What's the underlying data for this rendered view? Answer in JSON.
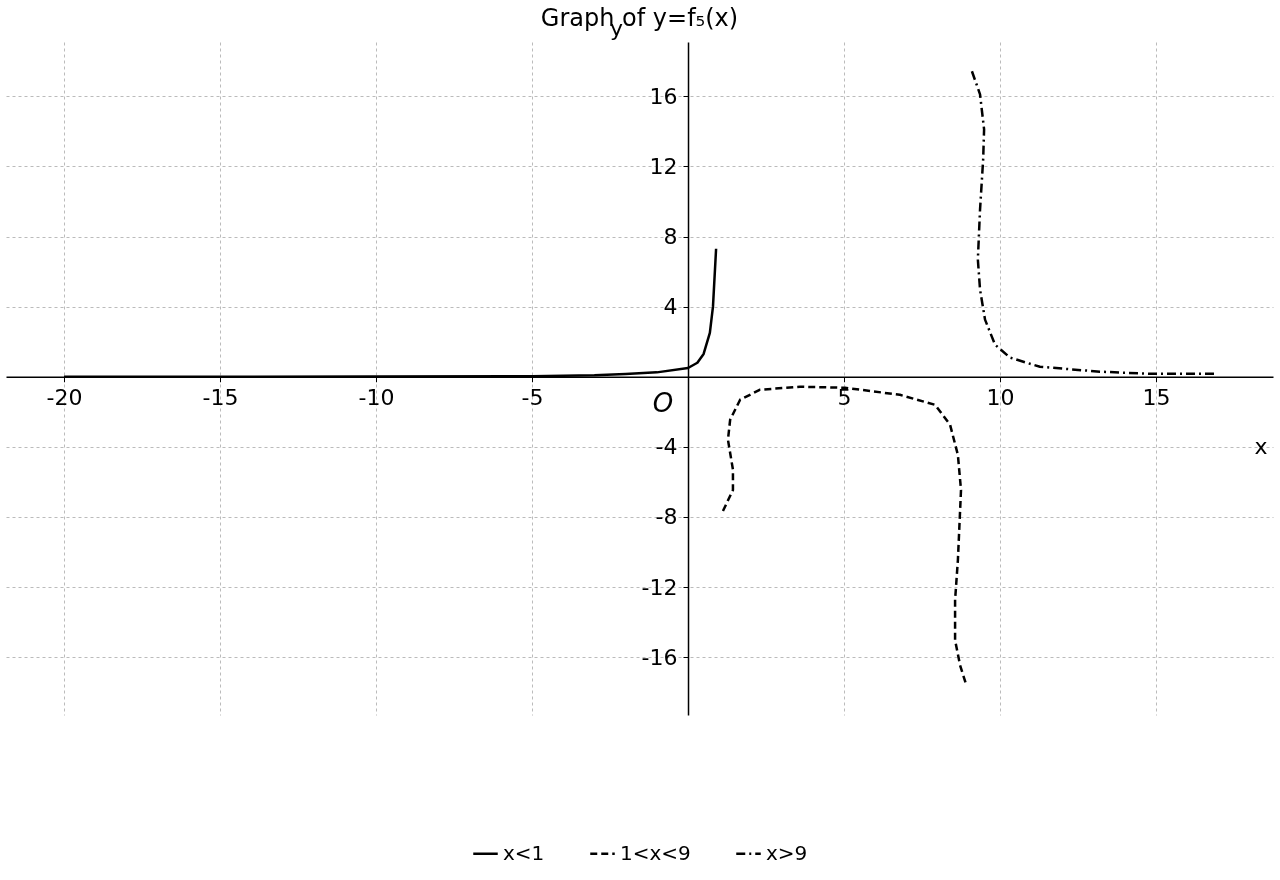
{
  "chart_data": {
    "type": "line",
    "title": "Graph of y=f₅(x)",
    "xlabel": "x",
    "ylabel": "y",
    "annotations": [
      "O"
    ],
    "xlim": [
      -21.86,
      18.75
    ],
    "ylim": [
      -19.3,
      19.1
    ],
    "xticks": [
      -20,
      -15,
      -10,
      -5,
      5,
      10,
      15
    ],
    "yticks": [
      -16,
      -12,
      -8,
      -4,
      4,
      8,
      12,
      16
    ],
    "grid": true,
    "legend": "bottom",
    "series": [
      {
        "name": "x<1",
        "color": "#000000",
        "line_style": "solid",
        "x": [
          -20,
          -10,
          -5,
          -3,
          -2,
          -1,
          0,
          0.3,
          0.5,
          0.7,
          0.8,
          0.9
        ],
        "values": [
          0,
          0.01,
          0.03,
          0.08,
          0.15,
          0.25,
          0.5,
          0.8,
          1.3,
          2.5,
          4,
          7.3
        ]
      },
      {
        "name": "1<x<9",
        "color": "#000000",
        "line_style": "dashed",
        "x": [
          1.12,
          1.44,
          1.44,
          1.28,
          1.35,
          1.67,
          2.31,
          3.59,
          5.03,
          6.79,
          7.92,
          8.4,
          8.65,
          8.75,
          8.65,
          8.56,
          8.56,
          8.72,
          8.91
        ],
        "values": [
          -7.66,
          -6.46,
          -5.3,
          -3.6,
          -2.46,
          -1.31,
          -0.74,
          -0.57,
          -0.63,
          -1.03,
          -1.6,
          -2.74,
          -4.46,
          -6.46,
          -10.46,
          -12.74,
          -15.03,
          -16.46,
          -17.54
        ]
      },
      {
        "name": "x>9",
        "color": "#000000",
        "line_style": "dashdot",
        "x": [
          9.1,
          9.36,
          9.49,
          9.46,
          9.36,
          9.29,
          9.36,
          9.52,
          9.84,
          10.32,
          11.28,
          13.2,
          14.81,
          16.89
        ],
        "values": [
          17.43,
          16.11,
          14.11,
          12.4,
          9.54,
          6.69,
          4.97,
          3.26,
          1.83,
          1.09,
          0.57,
          0.29,
          0.17,
          0.17
        ]
      }
    ]
  }
}
